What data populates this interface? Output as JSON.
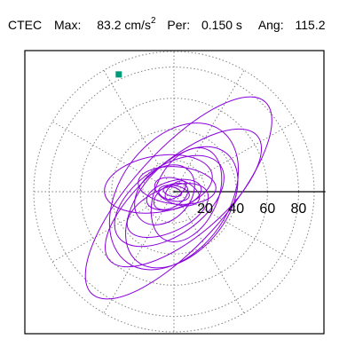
{
  "header": {
    "station": "CTEC",
    "max_label": "Max:",
    "max_value": "83.2",
    "max_unit_base": "cm/s",
    "max_unit_exp": "2",
    "per_label": "Per:",
    "per_value": "0.150 s",
    "ang_label": "Ang:",
    "ang_value": "115.2"
  },
  "colors": {
    "trace": "#8a00dd",
    "marker": "#009a7a",
    "grid": "#808080",
    "axis": "#000000"
  },
  "chart_data": {
    "type": "polar-orbit",
    "r_max": 90,
    "ring_values": [
      20,
      40,
      60,
      80
    ],
    "spoke_angles_deg": [
      0,
      30,
      60,
      90,
      120,
      150,
      180,
      210,
      240,
      270,
      300,
      330
    ],
    "tick_labels": [
      "20",
      "40",
      "60",
      "80"
    ],
    "peak_point": {
      "r": 83.2,
      "angle_deg": 115.2
    },
    "ellipses": [
      {
        "a": 83,
        "b": 30,
        "tilt": -48,
        "cx": 3,
        "cy": -4
      },
      {
        "a": 62,
        "b": 25,
        "tilt": -40,
        "cx": 6,
        "cy": -4
      },
      {
        "a": 52,
        "b": 35,
        "tilt": -55,
        "cx": 0,
        "cy": -3
      },
      {
        "a": 45,
        "b": 28,
        "tilt": -50,
        "cx": 5,
        "cy": -10
      },
      {
        "a": 40,
        "b": 22,
        "tilt": -35,
        "cx": -3,
        "cy": -6
      },
      {
        "a": 35,
        "b": 18,
        "tilt": -10,
        "cx": -10,
        "cy": 5
      },
      {
        "a": 32,
        "b": 20,
        "tilt": -65,
        "cx": 8,
        "cy": -2
      },
      {
        "a": 28,
        "b": 14,
        "tilt": -25,
        "cx": -4,
        "cy": -12
      },
      {
        "a": 25,
        "b": 12,
        "tilt": 5,
        "cx": 2,
        "cy": 4
      },
      {
        "a": 22,
        "b": 16,
        "tilt": -45,
        "cx": -6,
        "cy": -2
      },
      {
        "a": 18,
        "b": 9,
        "tilt": -15,
        "cx": 0,
        "cy": -2
      },
      {
        "a": 15,
        "b": 8,
        "tilt": 20,
        "cx": 2,
        "cy": 0
      },
      {
        "a": 12,
        "b": 7,
        "tilt": -30,
        "cx": -2,
        "cy": -3
      },
      {
        "a": 10,
        "b": 5,
        "tilt": 10,
        "cx": 0,
        "cy": -1
      },
      {
        "a": 8,
        "b": 4,
        "tilt": -40,
        "cx": 1,
        "cy": 1
      },
      {
        "a": 6,
        "b": 3,
        "tilt": 15,
        "cx": -1,
        "cy": 0
      }
    ]
  }
}
